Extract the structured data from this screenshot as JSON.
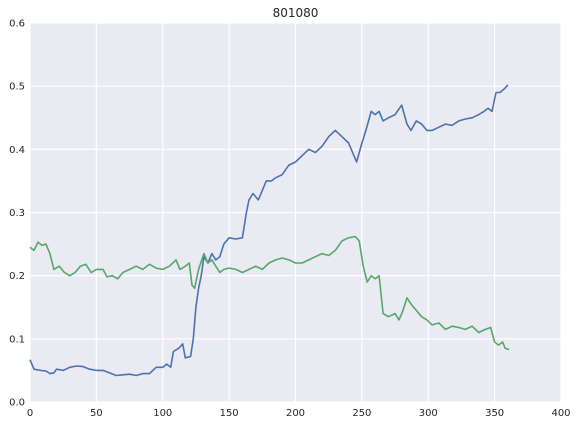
{
  "chart_data": {
    "type": "line",
    "title": "801080",
    "xlabel": "",
    "ylabel": "",
    "xlim": [
      0,
      400
    ],
    "ylim": [
      0,
      0.6
    ],
    "xticks": [
      0,
      50,
      100,
      150,
      200,
      250,
      300,
      350,
      400
    ],
    "yticks": [
      0.0,
      0.1,
      0.2,
      0.3,
      0.4,
      0.5,
      0.6
    ],
    "xtick_labels": [
      "0",
      "50",
      "100",
      "150",
      "200",
      "250",
      "300",
      "350",
      "400"
    ],
    "ytick_labels": [
      "0.0",
      "0.1",
      "0.2",
      "0.3",
      "0.4",
      "0.5",
      "0.6"
    ],
    "grid": true,
    "series": [
      {
        "color": "#4c72b0",
        "points": [
          [
            0,
            0.067
          ],
          [
            3,
            0.052
          ],
          [
            8,
            0.05
          ],
          [
            12,
            0.049
          ],
          [
            15,
            0.045
          ],
          [
            18,
            0.046
          ],
          [
            20,
            0.052
          ],
          [
            25,
            0.05
          ],
          [
            30,
            0.055
          ],
          [
            35,
            0.057
          ],
          [
            40,
            0.056
          ],
          [
            45,
            0.052
          ],
          [
            50,
            0.05
          ],
          [
            55,
            0.05
          ],
          [
            60,
            0.046
          ],
          [
            65,
            0.042
          ],
          [
            70,
            0.043
          ],
          [
            75,
            0.044
          ],
          [
            80,
            0.042
          ],
          [
            85,
            0.045
          ],
          [
            90,
            0.045
          ],
          [
            95,
            0.055
          ],
          [
            100,
            0.055
          ],
          [
            103,
            0.06
          ],
          [
            106,
            0.055
          ],
          [
            108,
            0.08
          ],
          [
            112,
            0.085
          ],
          [
            115,
            0.092
          ],
          [
            117,
            0.07
          ],
          [
            121,
            0.072
          ],
          [
            123,
            0.1
          ],
          [
            125,
            0.15
          ],
          [
            127,
            0.18
          ],
          [
            129,
            0.2
          ],
          [
            131,
            0.23
          ],
          [
            134,
            0.22
          ],
          [
            137,
            0.235
          ],
          [
            140,
            0.225
          ],
          [
            143,
            0.23
          ],
          [
            146,
            0.25
          ],
          [
            150,
            0.26
          ],
          [
            155,
            0.258
          ],
          [
            160,
            0.26
          ],
          [
            163,
            0.3
          ],
          [
            165,
            0.32
          ],
          [
            168,
            0.33
          ],
          [
            172,
            0.32
          ],
          [
            175,
            0.335
          ],
          [
            178,
            0.35
          ],
          [
            182,
            0.35
          ],
          [
            185,
            0.355
          ],
          [
            190,
            0.36
          ],
          [
            195,
            0.375
          ],
          [
            200,
            0.38
          ],
          [
            205,
            0.39
          ],
          [
            210,
            0.4
          ],
          [
            215,
            0.395
          ],
          [
            220,
            0.405
          ],
          [
            225,
            0.42
          ],
          [
            230,
            0.43
          ],
          [
            235,
            0.42
          ],
          [
            240,
            0.41
          ],
          [
            243,
            0.395
          ],
          [
            246,
            0.38
          ],
          [
            250,
            0.41
          ],
          [
            253,
            0.43
          ],
          [
            257,
            0.46
          ],
          [
            260,
            0.455
          ],
          [
            263,
            0.46
          ],
          [
            266,
            0.445
          ],
          [
            270,
            0.45
          ],
          [
            275,
            0.455
          ],
          [
            280,
            0.47
          ],
          [
            284,
            0.44
          ],
          [
            287,
            0.43
          ],
          [
            291,
            0.445
          ],
          [
            295,
            0.44
          ],
          [
            299,
            0.43
          ],
          [
            303,
            0.43
          ],
          [
            308,
            0.435
          ],
          [
            313,
            0.44
          ],
          [
            318,
            0.438
          ],
          [
            323,
            0.445
          ],
          [
            328,
            0.448
          ],
          [
            333,
            0.45
          ],
          [
            338,
            0.455
          ],
          [
            342,
            0.46
          ],
          [
            345,
            0.465
          ],
          [
            348,
            0.46
          ],
          [
            351,
            0.49
          ],
          [
            354,
            0.49
          ],
          [
            357,
            0.495
          ],
          [
            360,
            0.502
          ]
        ]
      },
      {
        "color": "#55a868",
        "points": [
          [
            0,
            0.245
          ],
          [
            3,
            0.24
          ],
          [
            6,
            0.253
          ],
          [
            9,
            0.248
          ],
          [
            12,
            0.25
          ],
          [
            15,
            0.235
          ],
          [
            18,
            0.21
          ],
          [
            22,
            0.215
          ],
          [
            26,
            0.205
          ],
          [
            30,
            0.2
          ],
          [
            34,
            0.205
          ],
          [
            38,
            0.215
          ],
          [
            42,
            0.218
          ],
          [
            46,
            0.205
          ],
          [
            50,
            0.21
          ],
          [
            55,
            0.21
          ],
          [
            58,
            0.198
          ],
          [
            62,
            0.2
          ],
          [
            66,
            0.195
          ],
          [
            70,
            0.205
          ],
          [
            75,
            0.21
          ],
          [
            80,
            0.215
          ],
          [
            85,
            0.21
          ],
          [
            90,
            0.218
          ],
          [
            95,
            0.212
          ],
          [
            100,
            0.21
          ],
          [
            105,
            0.215
          ],
          [
            110,
            0.225
          ],
          [
            113,
            0.21
          ],
          [
            117,
            0.215
          ],
          [
            120,
            0.22
          ],
          [
            122,
            0.185
          ],
          [
            124,
            0.18
          ],
          [
            127,
            0.21
          ],
          [
            131,
            0.235
          ],
          [
            134,
            0.22
          ],
          [
            137,
            0.225
          ],
          [
            140,
            0.215
          ],
          [
            143,
            0.205
          ],
          [
            146,
            0.21
          ],
          [
            150,
            0.212
          ],
          [
            155,
            0.21
          ],
          [
            160,
            0.205
          ],
          [
            165,
            0.21
          ],
          [
            170,
            0.215
          ],
          [
            175,
            0.21
          ],
          [
            180,
            0.22
          ],
          [
            185,
            0.225
          ],
          [
            190,
            0.228
          ],
          [
            195,
            0.225
          ],
          [
            200,
            0.22
          ],
          [
            205,
            0.22
          ],
          [
            210,
            0.225
          ],
          [
            215,
            0.23
          ],
          [
            220,
            0.235
          ],
          [
            225,
            0.232
          ],
          [
            230,
            0.24
          ],
          [
            235,
            0.255
          ],
          [
            240,
            0.26
          ],
          [
            245,
            0.262
          ],
          [
            248,
            0.255
          ],
          [
            251,
            0.215
          ],
          [
            254,
            0.19
          ],
          [
            257,
            0.2
          ],
          [
            260,
            0.195
          ],
          [
            263,
            0.2
          ],
          [
            266,
            0.14
          ],
          [
            270,
            0.135
          ],
          [
            275,
            0.14
          ],
          [
            278,
            0.13
          ],
          [
            281,
            0.145
          ],
          [
            284,
            0.165
          ],
          [
            287,
            0.155
          ],
          [
            291,
            0.145
          ],
          [
            295,
            0.135
          ],
          [
            299,
            0.13
          ],
          [
            303,
            0.122
          ],
          [
            308,
            0.125
          ],
          [
            313,
            0.115
          ],
          [
            318,
            0.12
          ],
          [
            323,
            0.118
          ],
          [
            328,
            0.115
          ],
          [
            333,
            0.12
          ],
          [
            338,
            0.11
          ],
          [
            343,
            0.115
          ],
          [
            347,
            0.118
          ],
          [
            350,
            0.095
          ],
          [
            353,
            0.09
          ],
          [
            356,
            0.095
          ],
          [
            358,
            0.085
          ],
          [
            361,
            0.083
          ]
        ]
      }
    ]
  }
}
